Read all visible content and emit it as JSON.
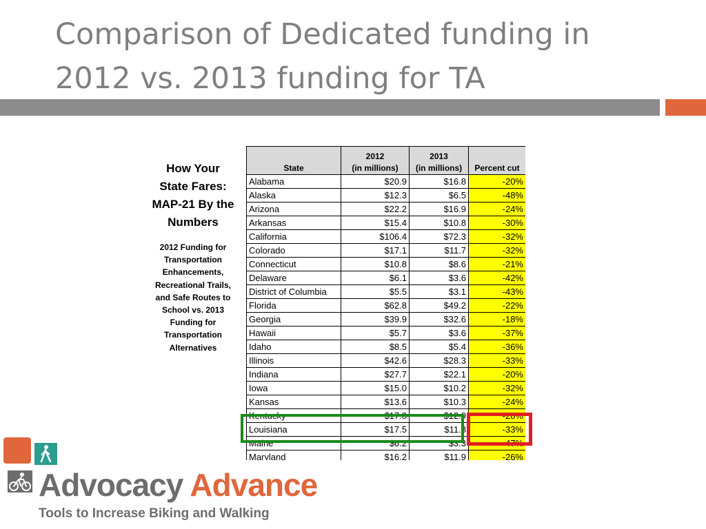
{
  "slide": {
    "title_line1": "Comparison of Dedicated funding in",
    "title_line2": "2012 vs. 2013 funding for TA"
  },
  "sidebar": {
    "heading": "How Your State Fares: MAP-21 By the Numbers",
    "subheading": "2012 Funding for Transportation Enhancements, Recreational Trails, and Safe Routes to School vs. 2013 Funding for Transportation Alternatives"
  },
  "table": {
    "headers": {
      "state": "State",
      "y2012_line1": "2012",
      "y2012_line2": "(in millions)",
      "y2013_line1": "2013",
      "y2013_line2": "(in millions)",
      "pct": "Percent cut"
    },
    "rows": [
      {
        "state": "Alabama",
        "y2012": "$20.9",
        "y2013": "$16.8",
        "pct": "-20%"
      },
      {
        "state": "Alaska",
        "y2012": "$12.3",
        "y2013": "$6.5",
        "pct": "-48%"
      },
      {
        "state": "Arizona",
        "y2012": "$22.2",
        "y2013": "$16.9",
        "pct": "-24%"
      },
      {
        "state": "Arkansas",
        "y2012": "$15.4",
        "y2013": "$10.8",
        "pct": "-30%"
      },
      {
        "state": "California",
        "y2012": "$106.4",
        "y2013": "$72.3",
        "pct": "-32%"
      },
      {
        "state": "Colorado",
        "y2012": "$17.1",
        "y2013": "$11.7",
        "pct": "-32%"
      },
      {
        "state": "Connecticut",
        "y2012": "$10.8",
        "y2013": "$8.6",
        "pct": "-21%"
      },
      {
        "state": "Delaware",
        "y2012": "$6.1",
        "y2013": "$3.6",
        "pct": "-42%"
      },
      {
        "state": "District of Columbia",
        "y2012": "$5.5",
        "y2013": "$3.1",
        "pct": "-43%"
      },
      {
        "state": "Florida",
        "y2012": "$62.8",
        "y2013": "$49.2",
        "pct": "-22%"
      },
      {
        "state": "Georgia",
        "y2012": "$39.9",
        "y2013": "$32.6",
        "pct": "-18%"
      },
      {
        "state": "Hawaii",
        "y2012": "$5.7",
        "y2013": "$3.6",
        "pct": "-37%"
      },
      {
        "state": "Idaho",
        "y2012": "$8.5",
        "y2013": "$5.4",
        "pct": "-36%"
      },
      {
        "state": "Illinois",
        "y2012": "$42.6",
        "y2013": "$28.3",
        "pct": "-33%"
      },
      {
        "state": "Indiana",
        "y2012": "$27.7",
        "y2013": "$22.1",
        "pct": "-20%"
      },
      {
        "state": "Iowa",
        "y2012": "$15.0",
        "y2013": "$10.2",
        "pct": "-32%"
      },
      {
        "state": "Kansas",
        "y2012": "$13.6",
        "y2013": "$10.3",
        "pct": "-24%"
      },
      {
        "state": "Kentucky",
        "y2012": "$17.8",
        "y2013": "$12.9",
        "pct": "-28%"
      },
      {
        "state": "Louisiana",
        "y2012": "$17.5",
        "y2013": "$11.8",
        "pct": "-33%"
      },
      {
        "state": "Maine",
        "y2012": "$6.2",
        "y2013": "$3.3",
        "pct": "-47%"
      },
      {
        "state": "Maryland",
        "y2012": "$16.2",
        "y2013": "$11.9",
        "pct": "-26%"
      }
    ]
  },
  "brand": {
    "name_part1": "Advocacy",
    "name_part2": "Advance",
    "tagline": "Tools to Increase Biking and Walking",
    "color_gray": "#6d6d6d",
    "color_orange": "#e0663c",
    "color_teal": "#2a9d8f"
  },
  "highlights": {
    "row_highlight_color": "#1a8a1a",
    "cell_highlight_color": "#e02020"
  }
}
